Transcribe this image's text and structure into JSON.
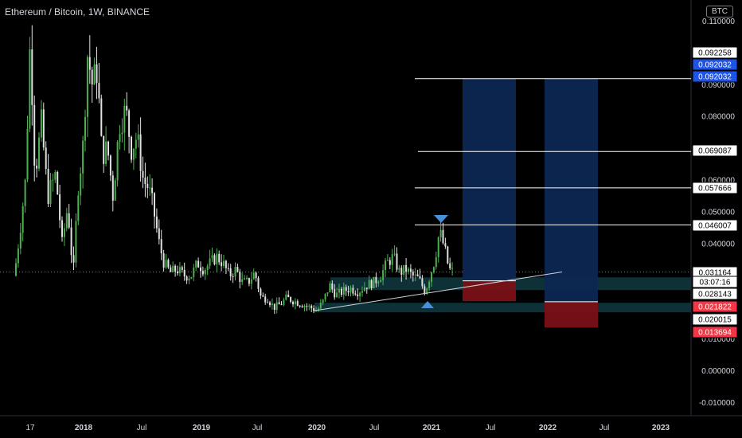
{
  "header": {
    "title": "Ethereum / Bitcoin, 1W, BINANCE"
  },
  "currency_badge": "BTC",
  "colors": {
    "up": "#26a69a",
    "candle_up": "#4caf50",
    "candle_down": "#e0e0e0",
    "target_box": "#0d2752",
    "stop_box": "#7a1116",
    "zone": "#0f3a3f",
    "blue_label": "#1e53e5",
    "red_label": "#f23645"
  },
  "chart_data": {
    "type": "candlestick",
    "symbol": "Ethereum / Bitcoin",
    "timeframe": "1W",
    "exchange": "BINANCE",
    "y_ticks": [
      "0.110000",
      "0.090000",
      "0.080000",
      "0.060000",
      "0.050000",
      "0.040000",
      "0.010000",
      "0.000000",
      "-0.010000"
    ],
    "x_ticks": [
      {
        "label": "17",
        "bold": false
      },
      {
        "label": "2018",
        "bold": true
      },
      {
        "label": "Jul",
        "bold": false
      },
      {
        "label": "2019",
        "bold": true
      },
      {
        "label": "Jul",
        "bold": false
      },
      {
        "label": "2020",
        "bold": true
      },
      {
        "label": "Jul",
        "bold": false
      },
      {
        "label": "2021",
        "bold": true
      },
      {
        "label": "Jul",
        "bold": false
      },
      {
        "label": "2022",
        "bold": true
      },
      {
        "label": "Jul",
        "bold": false
      },
      {
        "label": "2023",
        "bold": true
      }
    ],
    "price_labels": [
      {
        "value": "0.092258",
        "style": "white"
      },
      {
        "value": "0.092032",
        "style": "blue"
      },
      {
        "value": "0.092032",
        "style": "blue"
      },
      {
        "value": "0.069087",
        "style": "white"
      },
      {
        "value": "0.057666",
        "style": "white"
      },
      {
        "value": "0.046007",
        "style": "white"
      },
      {
        "value": "0.031164",
        "style": "white"
      },
      {
        "value": "03:07:16",
        "style": "white"
      },
      {
        "value": "0.028143",
        "style": "white"
      },
      {
        "value": "0.021822",
        "style": "red"
      },
      {
        "value": "0.020015",
        "style": "white"
      },
      {
        "value": "0.013694",
        "style": "red"
      }
    ],
    "target_levels": [
      0.092032,
      0.069087,
      0.057666,
      0.046007
    ],
    "current_price": 0.031164,
    "support_zones": [
      [
        0.0255,
        0.0295
      ],
      [
        0.0185,
        0.0215
      ]
    ],
    "trendline": {
      "from": [
        "2019-12",
        "0.0190"
      ],
      "to": [
        "2022-03",
        "0.0312"
      ]
    },
    "trades": [
      {
        "entry": 0.0284,
        "target": 0.092032,
        "stop": 0.022
      },
      {
        "entry": 0.021822,
        "target": 0.092032,
        "stop": 0.013694
      }
    ]
  }
}
